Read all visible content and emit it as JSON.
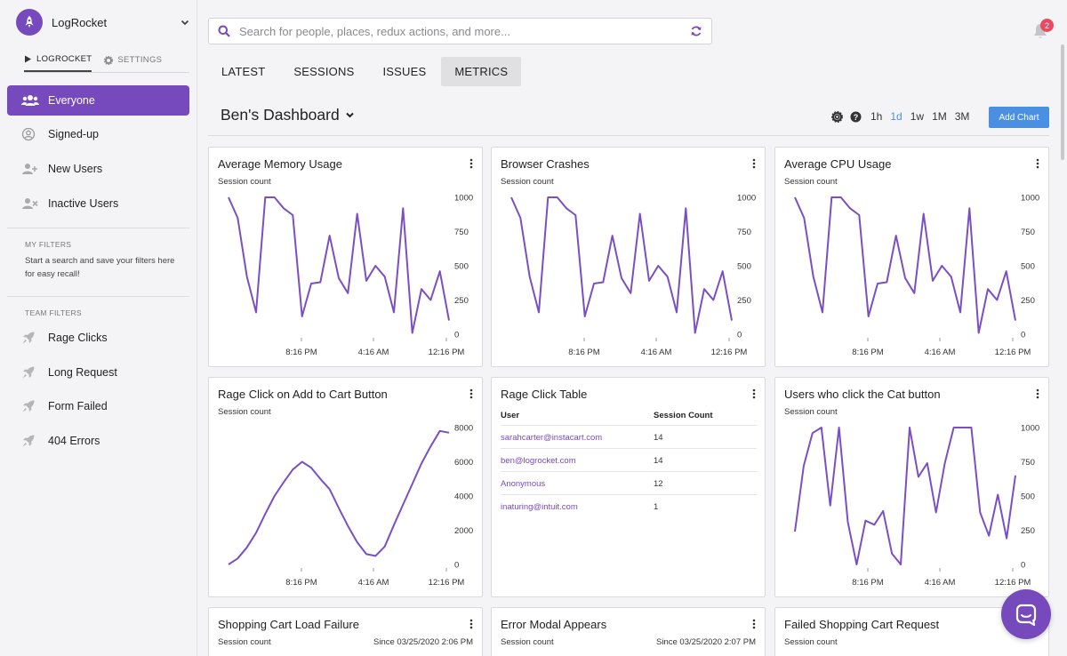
{
  "app": {
    "name": "LogRocket"
  },
  "sidebar": {
    "mode_tabs": [
      {
        "label": "LOGROCKET"
      },
      {
        "label": "SETTINGS"
      }
    ],
    "items": [
      {
        "label": "Everyone"
      },
      {
        "label": "Signed-up"
      },
      {
        "label": "New Users"
      },
      {
        "label": "Inactive Users"
      }
    ],
    "my_filters": {
      "title": "MY FILTERS",
      "description": "Start a search and save your filters here for easy recall!"
    },
    "team_filters": {
      "title": "TEAM FILTERS",
      "items": [
        {
          "label": "Rage Clicks"
        },
        {
          "label": "Long Request"
        },
        {
          "label": "Form Failed"
        },
        {
          "label": "404 Errors"
        }
      ]
    }
  },
  "search": {
    "placeholder": "Search for people, places, redux actions, and more..."
  },
  "notifications": {
    "count": "2"
  },
  "tabs": [
    {
      "label": "LATEST"
    },
    {
      "label": "SESSIONS"
    },
    {
      "label": "ISSUES"
    },
    {
      "label": "METRICS"
    }
  ],
  "dashboard": {
    "title": "Ben's Dashboard",
    "ranges": [
      "1h",
      "1d",
      "1w",
      "1M",
      "3M"
    ],
    "add_chart_label": "Add Chart"
  },
  "colors": {
    "accent": "#764abc",
    "button": "#4a90e2",
    "badge": "#e84a5f"
  },
  "cards": {
    "memory": {
      "title": "Average Memory Usage",
      "subtitle": "Session count"
    },
    "crashes": {
      "title": "Browser Crashes",
      "subtitle": "Session count"
    },
    "cpu": {
      "title": "Average CPU Usage",
      "subtitle": "Session count"
    },
    "rage_add": {
      "title": "Rage Click on Add to Cart Button",
      "subtitle": "Session count"
    },
    "rage_table": {
      "title": "Rage Click Table",
      "headers": {
        "user": "User",
        "count": "Session Count"
      },
      "rows": [
        {
          "user": "sarahcarter@instacart.com",
          "count": "14"
        },
        {
          "user": "ben@logrocket.com",
          "count": "14"
        },
        {
          "user": "Anonymous",
          "count": "12"
        },
        {
          "user": "inaturing@intuit.com",
          "count": "1"
        }
      ]
    },
    "cat_button": {
      "title": "Users who click the Cat button",
      "subtitle": "Session count"
    },
    "cart_load": {
      "title": "Shopping Cart Load Failure",
      "subtitle": "Session count",
      "since": "Since 03/25/2020 2:06 PM"
    },
    "error_modal": {
      "title": "Error Modal Appears",
      "subtitle": "Session count",
      "since": "Since 03/25/2020 2:07 PM"
    },
    "failed_cart": {
      "title": "Failed Shopping Cart Request",
      "subtitle": "Session count"
    }
  },
  "chart_data": [
    {
      "id": "memory",
      "type": "line",
      "x_ticks": [
        "8:16 PM",
        "4:16 AM",
        "12:16 PM"
      ],
      "y_ticks": [
        0,
        250,
        500,
        750,
        1000
      ],
      "ylim": [
        0,
        1000
      ],
      "values": [
        1000,
        850,
        420,
        160,
        1000,
        1000,
        920,
        870,
        130,
        370,
        380,
        720,
        410,
        300,
        880,
        390,
        500,
        420,
        160,
        920,
        10,
        330,
        250,
        460,
        100
      ]
    },
    {
      "id": "crashes",
      "type": "line",
      "x_ticks": [
        "8:16 PM",
        "4:16 AM",
        "12:16 PM"
      ],
      "y_ticks": [
        0,
        250,
        500,
        750,
        1000
      ],
      "ylim": [
        0,
        1000
      ],
      "values": [
        1000,
        850,
        420,
        160,
        1000,
        1000,
        920,
        870,
        130,
        370,
        380,
        720,
        410,
        300,
        880,
        390,
        500,
        420,
        160,
        920,
        10,
        330,
        250,
        460,
        100
      ]
    },
    {
      "id": "cpu",
      "type": "line",
      "x_ticks": [
        "8:16 PM",
        "4:16 AM",
        "12:16 PM"
      ],
      "y_ticks": [
        0,
        250,
        500,
        750,
        1000
      ],
      "ylim": [
        0,
        1000
      ],
      "values": [
        1000,
        850,
        420,
        160,
        1000,
        1000,
        920,
        870,
        130,
        370,
        380,
        720,
        410,
        300,
        880,
        390,
        500,
        420,
        160,
        920,
        10,
        330,
        250,
        460,
        100
      ]
    },
    {
      "id": "rage_add",
      "type": "line",
      "x_ticks": [
        "8:16 PM",
        "4:16 AM",
        "12:16 PM"
      ],
      "y_ticks": [
        0,
        2000,
        4000,
        6000,
        8000
      ],
      "ylim": [
        0,
        8000
      ],
      "values": [
        0,
        350,
        1000,
        1850,
        2950,
        4000,
        4800,
        5550,
        6000,
        5650,
        5000,
        4400,
        3300,
        2250,
        1300,
        600,
        500,
        1050,
        2300,
        3500,
        4700,
        5900,
        6900,
        7800,
        7700
      ]
    },
    {
      "id": "cat_button",
      "type": "line",
      "x_ticks": [
        "8:16 PM",
        "4:16 AM",
        "12:16 PM"
      ],
      "y_ticks": [
        0,
        250,
        500,
        750,
        1000
      ],
      "ylim": [
        0,
        1000
      ],
      "values": [
        240,
        720,
        960,
        1000,
        430,
        1000,
        310,
        0,
        320,
        290,
        390,
        80,
        0,
        1000,
        640,
        740,
        380,
        740,
        1000,
        1000,
        1000,
        380,
        210,
        510,
        190,
        650
      ]
    }
  ]
}
